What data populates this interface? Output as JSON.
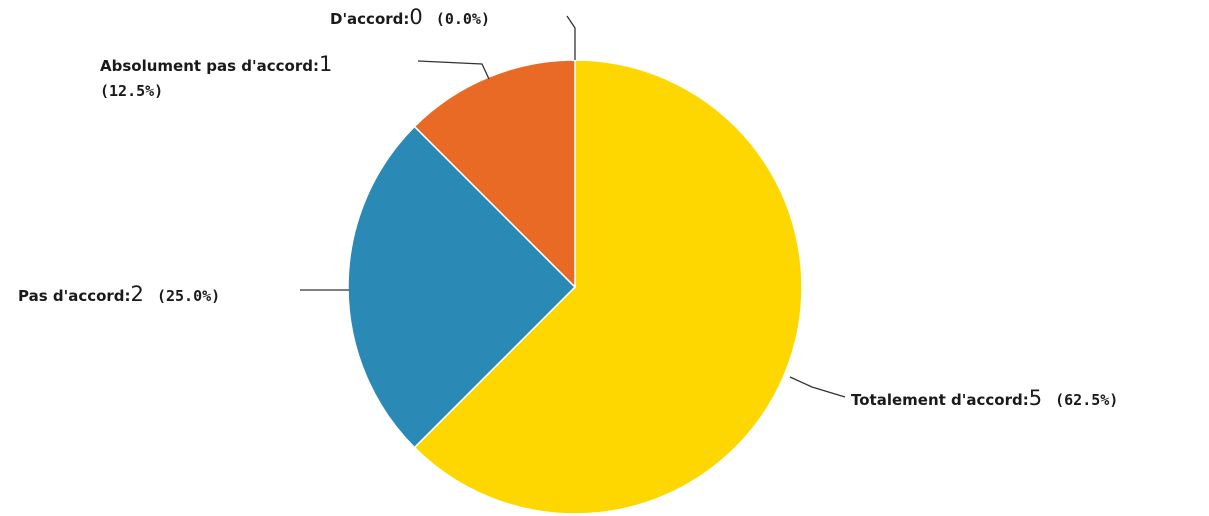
{
  "chart_data": {
    "type": "pie",
    "title": "",
    "legend": "none",
    "slices": [
      {
        "label": "Totalement d'accord",
        "value": 5,
        "percent_text": "(62.5%)",
        "color": "#FFD700"
      },
      {
        "label": "Pas d'accord",
        "value": 2,
        "percent_text": "(25.0%)",
        "color": "#2A89B5"
      },
      {
        "label": "Absolument pas d'accord",
        "value": 1,
        "percent_text": "(12.5%)",
        "color": "#E86A25"
      },
      {
        "label": "D'accord",
        "value": 0,
        "percent_text": "(0.0%)",
        "color": "#6BA539"
      }
    ]
  }
}
